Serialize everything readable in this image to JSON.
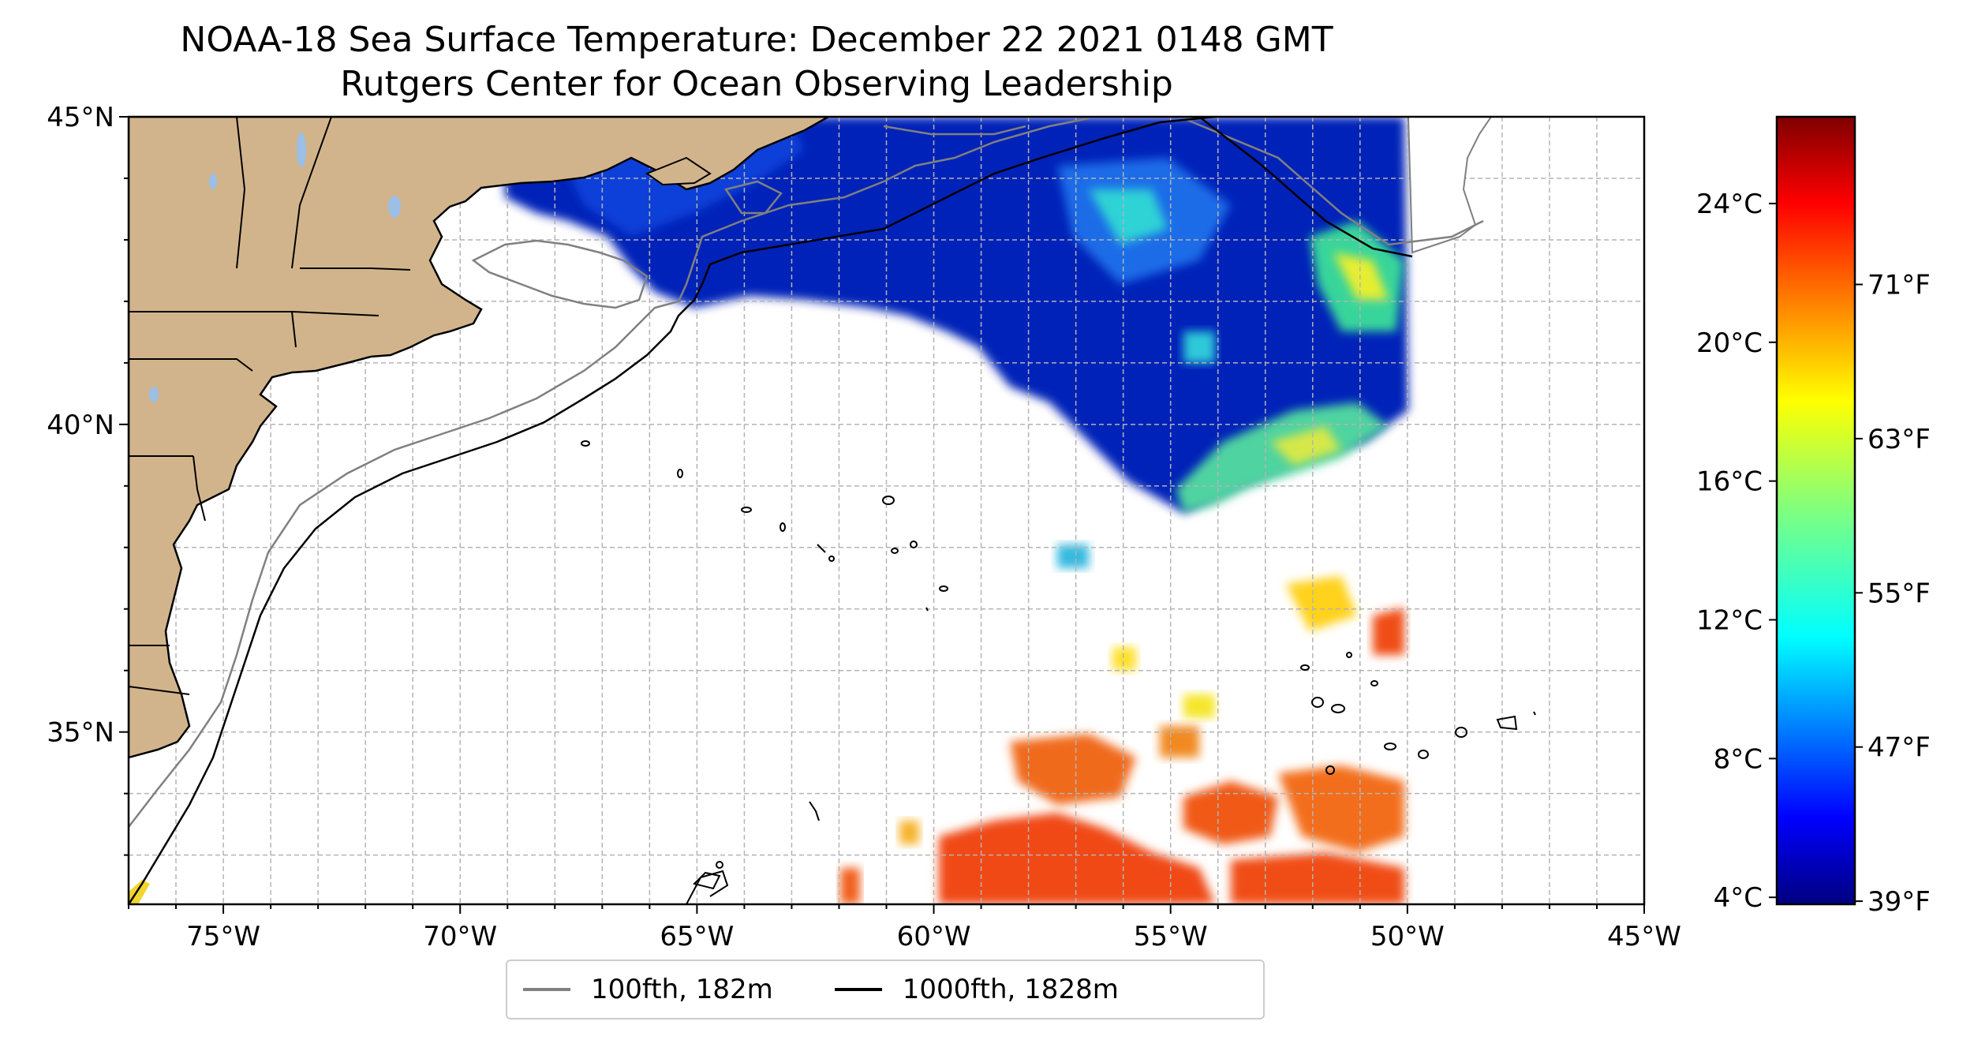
{
  "title": "NOAA-18 Sea Surface Temperature: December 22 2021 0148 GMT",
  "subtitle": "Rutgers Center for Ocean Observing Leadership",
  "map": {
    "lon_range": [
      -77,
      -45
    ],
    "lat_range": [
      32.2,
      45
    ],
    "x_ticks": [
      "75°W",
      "70°W",
      "65°W",
      "60°W",
      "55°W",
      "50°W",
      "45°W"
    ],
    "x_tick_values": [
      -75,
      -70,
      -65,
      -60,
      -55,
      -50,
      -45
    ],
    "y_ticks": [
      "35°N",
      "40°N",
      "45°N"
    ],
    "y_tick_values": [
      35,
      40,
      45
    ],
    "grid": true,
    "colors": {
      "land": "#d2b48c",
      "coastline": "#000000",
      "isobath_100fth": "#808080",
      "isobath_1000fth": "#000000",
      "lakes": "#9bbfe5"
    }
  },
  "colorbar": {
    "colormap": "jet",
    "range_celsius": [
      3.8,
      26.5
    ],
    "celsius_ticks": [
      "4°C",
      "8°C",
      "12°C",
      "16°C",
      "20°C",
      "24°C"
    ],
    "celsius_tick_values": [
      4,
      8,
      12,
      16,
      20,
      24
    ],
    "fahrenheit_ticks": [
      "39°F",
      "47°F",
      "55°F",
      "63°F",
      "71°F"
    ],
    "fahrenheit_tick_values": [
      39,
      47,
      55,
      63,
      71
    ]
  },
  "legend": {
    "items": [
      {
        "label": "100fth, 182m",
        "color": "#808080"
      },
      {
        "label": "1000fth, 1828m",
        "color": "#000000"
      }
    ]
  }
}
